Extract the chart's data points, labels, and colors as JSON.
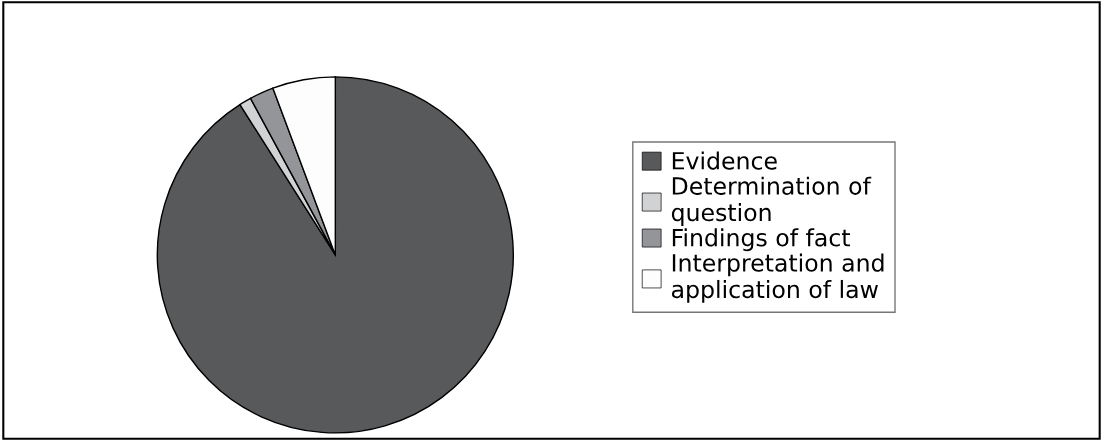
{
  "chart_data": {
    "type": "pie",
    "categories": [
      "Evidence",
      "Determination of question",
      "Findings of fact",
      "Interpretation and application of law"
    ],
    "values": [
      91,
      1.1,
      2.2,
      5.7
    ],
    "colors": [
      "#58595b",
      "#d1d2d4",
      "#939598",
      "#fdfdfd"
    ],
    "legend": "right"
  }
}
